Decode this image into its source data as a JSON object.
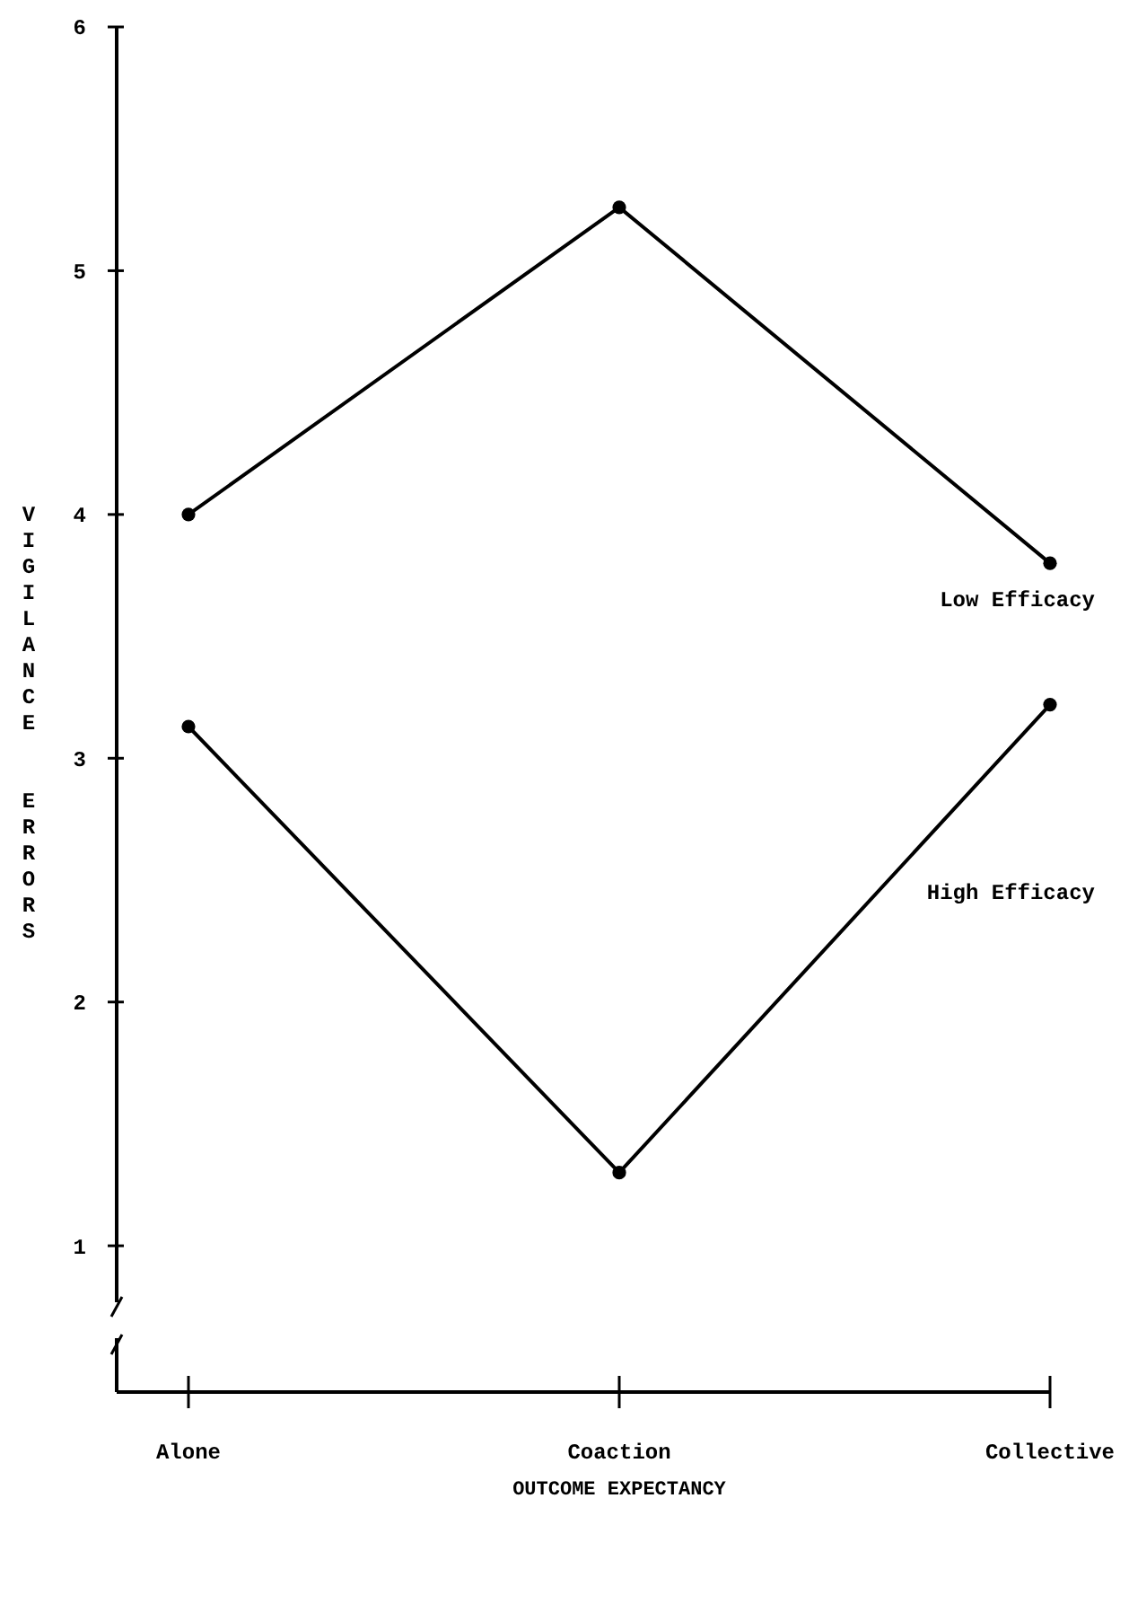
{
  "chart_data": {
    "type": "line",
    "xlabel": "OUTCOME EXPECTANCY",
    "ylabel": "VIGILANCE  ERRORS",
    "categories": [
      "Alone",
      "Coaction",
      "Collective"
    ],
    "series": [
      {
        "name": "Low Efficacy",
        "color": "#000000",
        "values": [
          4.0,
          5.26,
          3.8
        ]
      },
      {
        "name": "High Efficacy",
        "color": "#000000",
        "values": [
          3.13,
          1.3,
          3.22
        ]
      }
    ],
    "ylim": [
      0.4,
      6
    ],
    "yticks": [
      1,
      2,
      3,
      4,
      5,
      6
    ],
    "grid": false,
    "marker": "circle",
    "line_style": "solid"
  }
}
